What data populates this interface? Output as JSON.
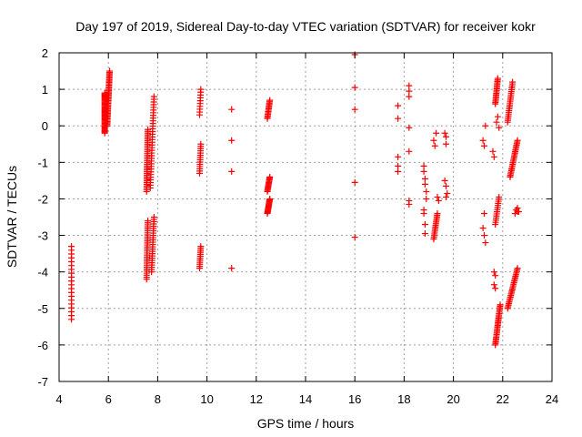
{
  "chart_data": {
    "type": "scatter",
    "title": "Day 197 of 2019, Sidereal Day-to-day VTEC variation (SDTVAR) for receiver kokr",
    "xlabel": "GPS time / hours",
    "ylabel": "SDTVAR / TECUs",
    "xlim": [
      4,
      24
    ],
    "ylim": [
      -7,
      2
    ],
    "xticks": [
      4,
      6,
      8,
      10,
      12,
      14,
      16,
      18,
      20,
      22,
      24
    ],
    "yticks": [
      -7,
      -6,
      -5,
      -4,
      -3,
      -2,
      -1,
      0,
      1,
      2
    ],
    "xtick_labels": [
      "4",
      "6",
      "8",
      "10",
      "12",
      "14",
      "16",
      "18",
      "20",
      "22",
      "24"
    ],
    "ytick_labels": [
      "-7",
      "-6",
      "-5",
      "-4",
      "-3",
      "-2",
      "-1",
      "0",
      "1",
      "2"
    ],
    "grid": true,
    "marker": "+",
    "series": [
      {
        "name": "SDTVAR",
        "color": "#ff0000",
        "segments": [
          {
            "x": [
              4.5,
              4.5
            ],
            "y": [
              -5.3,
              -3.3
            ],
            "n": 20
          },
          {
            "x": [
              5.85,
              5.85
            ],
            "y": [
              -0.2,
              0.9
            ],
            "n": 40
          },
          {
            "x": [
              5.95,
              6.05
            ],
            "y": [
              0.0,
              1.5
            ],
            "n": 40
          },
          {
            "x": [
              7.55,
              7.6
            ],
            "y": [
              -1.8,
              -0.1
            ],
            "n": 35
          },
          {
            "x": [
              7.7,
              7.85
            ],
            "y": [
              -1.7,
              0.8
            ],
            "n": 35
          },
          {
            "x": [
              7.55,
              7.6
            ],
            "y": [
              -4.2,
              -2.6
            ],
            "n": 30
          },
          {
            "x": [
              7.75,
              7.85
            ],
            "y": [
              -4.0,
              -2.5
            ],
            "n": 25
          },
          {
            "x": [
              9.7,
              9.75
            ],
            "y": [
              0.3,
              1.0
            ],
            "n": 10
          },
          {
            "x": [
              9.7,
              9.75
            ],
            "y": [
              -1.3,
              -0.5
            ],
            "n": 14
          },
          {
            "x": [
              9.7,
              9.75
            ],
            "y": [
              -3.9,
              -3.3
            ],
            "n": 12
          },
          {
            "x": [
              12.45,
              12.55
            ],
            "y": [
              0.2,
              0.7
            ],
            "n": 14
          },
          {
            "x": [
              12.45,
              12.55
            ],
            "y": [
              -1.8,
              -1.4
            ],
            "n": 14
          },
          {
            "x": [
              12.45,
              12.55
            ],
            "y": [
              -2.4,
              -2.0
            ],
            "n": 16
          },
          {
            "x": [
              19.2,
              19.35
            ],
            "y": [
              -3.1,
              -2.4
            ],
            "n": 16
          },
          {
            "x": [
              21.7,
              21.9
            ],
            "y": [
              -6.0,
              -4.9
            ],
            "n": 28
          },
          {
            "x": [
              22.2,
              22.6
            ],
            "y": [
              -5.0,
              -3.9
            ],
            "n": 26
          },
          {
            "x": [
              21.7,
              21.8
            ],
            "y": [
              0.6,
              1.3
            ],
            "n": 18
          },
          {
            "x": [
              22.2,
              22.4
            ],
            "y": [
              0.1,
              1.2
            ],
            "n": 22
          },
          {
            "x": [
              22.3,
              22.6
            ],
            "y": [
              -1.4,
              -0.4
            ],
            "n": 24
          },
          {
            "x": [
              21.7,
              21.85
            ],
            "y": [
              -2.7,
              -1.95
            ],
            "n": 14
          }
        ],
        "points": [
          [
            11,
            0.45
          ],
          [
            11,
            -0.4
          ],
          [
            11,
            -1.25
          ],
          [
            11,
            -3.9
          ],
          [
            16,
            1.95
          ],
          [
            16,
            1.05
          ],
          [
            16,
            0.45
          ],
          [
            16,
            -1.55
          ],
          [
            16,
            -3.05
          ],
          [
            17.75,
            0.55
          ],
          [
            17.75,
            0.2
          ],
          [
            17.75,
            -0.85
          ],
          [
            17.75,
            -1.1
          ],
          [
            17.75,
            -1.25
          ],
          [
            18.2,
            1.1
          ],
          [
            18.2,
            0.95
          ],
          [
            18.2,
            0.8
          ],
          [
            18.2,
            -0.05
          ],
          [
            18.2,
            -0.7
          ],
          [
            18.2,
            -2.05
          ],
          [
            18.2,
            -2.15
          ],
          [
            18.8,
            -1.1
          ],
          [
            18.8,
            -1.25
          ],
          [
            18.85,
            -1.45
          ],
          [
            18.85,
            -1.6
          ],
          [
            18.9,
            -1.8
          ],
          [
            18.8,
            -2.3
          ],
          [
            18.8,
            -2.4
          ],
          [
            18.85,
            -2.7
          ],
          [
            18.85,
            -2.95
          ],
          [
            18.9,
            -2.0
          ],
          [
            19.2,
            -0.4
          ],
          [
            19.25,
            -0.55
          ],
          [
            19.3,
            -0.2
          ],
          [
            19.35,
            -1.95
          ],
          [
            19.4,
            -2.05
          ],
          [
            19.65,
            -0.2
          ],
          [
            19.7,
            -0.3
          ],
          [
            19.7,
            -0.5
          ],
          [
            19.65,
            -1.5
          ],
          [
            19.7,
            -1.65
          ],
          [
            19.75,
            -1.85
          ],
          [
            19.7,
            -1.95
          ],
          [
            21.2,
            -0.4
          ],
          [
            21.25,
            -0.55
          ],
          [
            21.3,
            0.0
          ],
          [
            21.25,
            -2.4
          ],
          [
            21.2,
            -2.8
          ],
          [
            21.25,
            -3.0
          ],
          [
            21.3,
            -3.2
          ],
          [
            21.6,
            -0.7
          ],
          [
            21.65,
            -0.85
          ],
          [
            21.65,
            -4.0
          ],
          [
            21.7,
            -4.1
          ],
          [
            21.65,
            -4.35
          ],
          [
            21.7,
            -4.45
          ],
          [
            21.75,
            0.1
          ],
          [
            21.8,
            0.25
          ],
          [
            21.85,
            -0.05
          ],
          [
            22.6,
            -2.35
          ],
          [
            22.55,
            -2.3
          ],
          [
            22.5,
            -2.4
          ],
          [
            22.65,
            -2.35
          ],
          [
            22.6,
            -2.25
          ]
        ]
      }
    ]
  }
}
